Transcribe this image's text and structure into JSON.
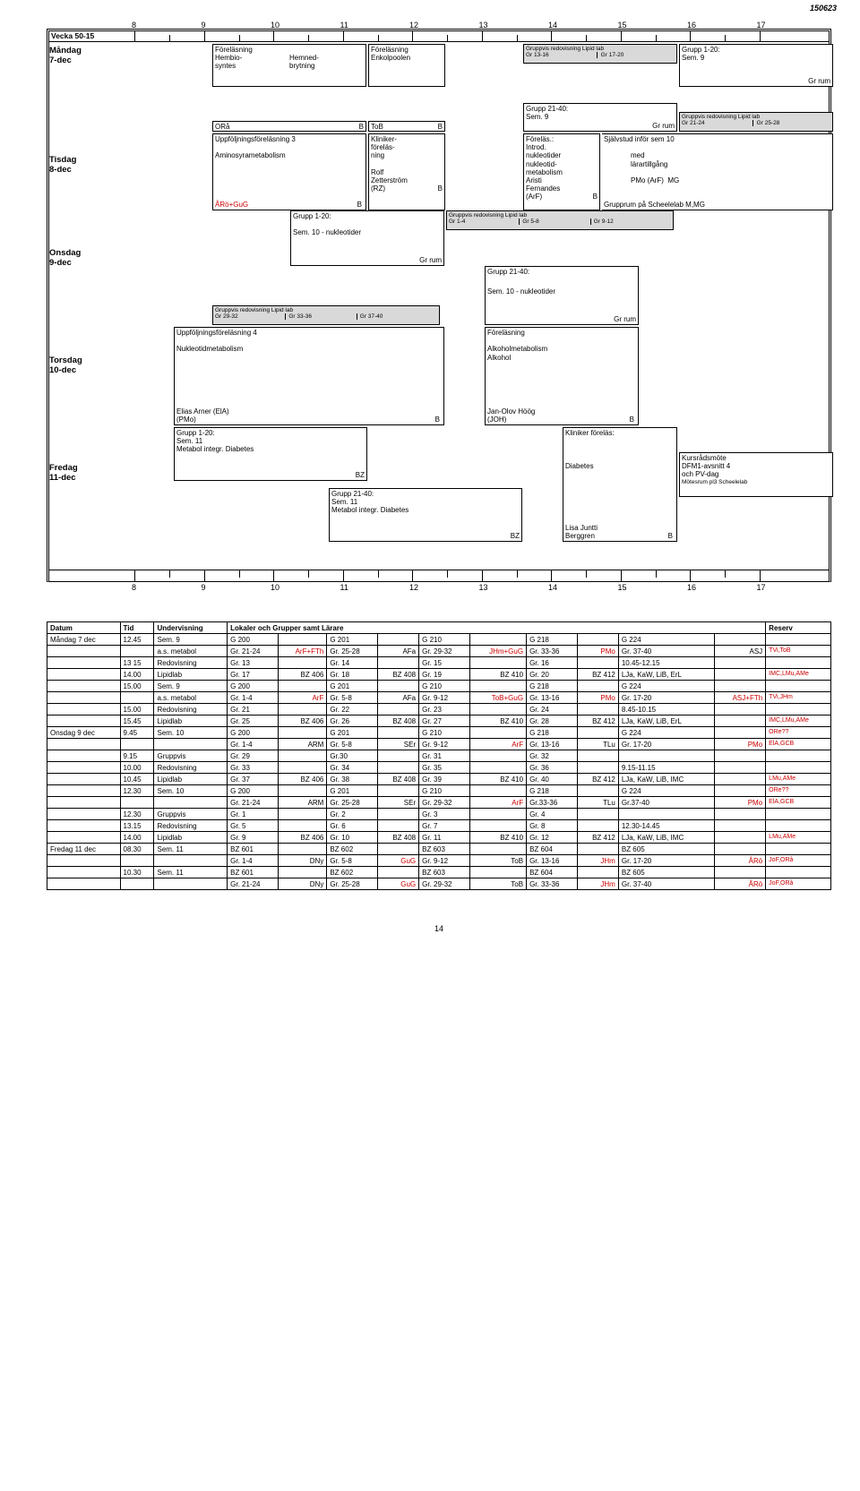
{
  "top_date": "150623",
  "week_label": "Vecka 50-15",
  "hours": [
    "8",
    "9",
    "10",
    "11",
    "12",
    "13",
    "14",
    "15",
    "16",
    "17"
  ],
  "days": [
    {
      "name": "Måndag",
      "date": "7-dec"
    },
    {
      "name": "Tisdag",
      "date": "8-dec"
    },
    {
      "name": "Onsdag",
      "date": "9-dec"
    },
    {
      "name": "Torsdag",
      "date": "10-dec"
    },
    {
      "name": "Fredag",
      "date": "11-dec"
    }
  ],
  "mon": {
    "e1_title": "Föreläsning",
    "e1_l1": "Hembio-",
    "e1_l2": "syntes",
    "e1_r1": "Hemned-",
    "e1_r2": "brytning",
    "e2_title": "Föreläsning",
    "e2_l1": "Enkolpoolen",
    "e3_sm": "Gruppvis redovisning Lipid lab",
    "e3_a": "Gr 13-16",
    "e3_b": "Gr 17-20",
    "e4_t": "Grupp 1-20:",
    "e4_l": "Sem. 9",
    "e4_br": "Gr rum"
  },
  "tue": {
    "ora": "ORå",
    "orb": "B",
    "tob": "ToB",
    "tobB": "B",
    "g21": "Grupp 21-40:",
    "s9": "Sem. 9",
    "grrum": "Gr rum",
    "gvll": "Gruppvis redovisning Lipid lab",
    "g21_24": "Gr 21-24",
    "g25_28": "Gr 25-28",
    "uf3": "Uppföljningsföreläsning 3",
    "amin": "Aminosyrametabolism",
    "aro": "ÅRö+GuG",
    "aroB": "B",
    "klin": "Kliniker-",
    "forelas": "föreläs-",
    "ning": "ning",
    "rolf": "Rolf",
    "zett": "Zetterström",
    "rz": "(RZ)",
    "rzB": "B",
    "forel": "Föreläs.:",
    "introd": "Introd.",
    "nukleo": "nukleotider",
    "nukleotid": "nukleotid-",
    "metab": "metabolism",
    "aristi": "Aristi",
    "fern": "Fernandes",
    "arf": "(ArF)",
    "arfB": "B",
    "sjalv": "Självstud inför sem 10",
    "med": "med",
    "larar": "lärartillgång",
    "pmo": "PMo (ArF)",
    "mg": "MG",
    "grupprum": "Grupprum på Scheelelab M,MG"
  },
  "wed": {
    "g120": "Grupp 1-20:",
    "s10": "Sem. 10 - nukleotider",
    "grrum": "Gr rum",
    "gvll": "Gruppvis redovisning Lipid lab",
    "g14": "Gr 1-4",
    "g58": "Gr 5-8",
    "g912": "Gr 9-12",
    "g2140": "Grupp 21-40:",
    "bot_gvll": "Gruppvis redovisning Lipid lab",
    "g2932": "Gr 29-32",
    "g3336": "Gr 33-36",
    "g3740": "Gr 37-40",
    "s10b": "Sem. 10 - nukleotider",
    "grrum2": "Gr rum"
  },
  "thu": {
    "uf4": "Uppföljningsföreläsning 4",
    "nm": "Nukleotidmetabolism",
    "f": "Föreläsning",
    "alk": "Alkoholmetabolism",
    "alkohol": "Alkohol",
    "ea": "Elias Arner (ElA)",
    "pmo": "(PMo)",
    "B": "B",
    "joh_n": "Jan-Olov Höög",
    "joh": "(JOH)"
  },
  "fri": {
    "g120": "Grupp 1-20:",
    "s11": "Sem. 11",
    "mid": "Metabol integr. Diabetes",
    "bz": "BZ",
    "g2140": "Grupp 21-40:",
    "s11b": "Sem. 11",
    "mid2": "Metabol integr. Diabetes",
    "bz2": "BZ",
    "kf": "Kliniker föreläs:",
    "diab": "Diabetes",
    "lisa": "Lisa Juntti",
    "berg": "Berggren",
    "bB": "B",
    "kurs": "Kursrådsmöte",
    "d4": "DFM1-avsnitt 4",
    "pv": "och PV-dag",
    "mote": "Mötesrum pl3 Scheelelab"
  },
  "table": {
    "head": [
      "Datum",
      "Tid",
      "Undervisning",
      "Lokaler och Grupper samt Lärare",
      "Reserv"
    ],
    "rows": [
      [
        "Måndag 7 dec",
        "12.45",
        "Sem. 9",
        "G 200",
        "",
        "G 201",
        "",
        "G 210",
        "",
        "G 218",
        "",
        "G 224",
        "",
        ""
      ],
      [
        "",
        "",
        "a.s. metabol",
        "Gr. 21-24",
        "ArF+FTh",
        "Gr. 25-28",
        "AFa",
        "Gr. 29-32",
        "JHm+GuG",
        "Gr. 33-36",
        "PMo",
        "Gr. 37-40",
        "ASJ",
        "TVi,ToB"
      ],
      [
        "",
        "13 15",
        "Redovisning",
        "Gr. 13",
        "",
        "Gr. 14",
        "",
        "Gr. 15",
        "",
        "Gr. 16",
        "",
        "10.45-12.15",
        "",
        ""
      ],
      [
        "",
        "14.00",
        "Lipidlab",
        "Gr. 17",
        "BZ 406",
        "Gr. 18",
        "BZ 408",
        "Gr. 19",
        "BZ 410",
        "Gr. 20",
        "BZ 412",
        "LJa, KaW, LiB, ErL",
        "",
        "IMC,LMu,AMe"
      ],
      [
        "",
        "15.00",
        "Sem. 9",
        "G 200",
        "",
        "G 201",
        "",
        "G 210",
        "",
        "G 218",
        "",
        "G 224",
        "",
        ""
      ],
      [
        "",
        "",
        "a.s. metabol",
        "Gr. 1-4",
        "ArF",
        "Gr. 5-8",
        "AFa",
        "Gr. 9-12",
        "ToB+GuG",
        "Gr. 13-16",
        "PMo",
        "Gr. 17-20",
        "ASJ+FTh",
        "TVi,JHm"
      ],
      [
        "",
        "15.00",
        "Redovisning",
        "Gr. 21",
        "",
        "Gr. 22",
        "",
        "Gr. 23",
        "",
        "Gr. 24",
        "",
        "8.45-10.15",
        "",
        ""
      ],
      [
        "",
        "15.45",
        "Lipidlab",
        "Gr. 25",
        "BZ 406",
        "Gr. 26",
        "BZ 408",
        "Gr. 27",
        "BZ 410",
        "Gr. 28",
        "BZ 412",
        "LJa, KaW, LiB, ErL",
        "",
        "IMC,LMu,AMe"
      ],
      [
        "Onsdag 9 dec",
        "9.45",
        "Sem. 10",
        "G 200",
        "",
        "G 201",
        "",
        "G 210",
        "",
        "G 218",
        "",
        "G 224",
        "",
        "ORe??"
      ],
      [
        "",
        "",
        "",
        "Gr. 1-4",
        "ARM",
        "Gr. 5-8",
        "SEr",
        "Gr. 9-12",
        "ArF",
        "Gr. 13-16",
        "TLu",
        "Gr. 17-20",
        "PMo",
        "ElA,GCB"
      ],
      [
        "",
        "9.15",
        "Gruppvis",
        "Gr. 29",
        "",
        "Gr.30",
        "",
        "Gr. 31",
        "",
        "Gr. 32",
        "",
        "",
        "",
        ""
      ],
      [
        "",
        "10.00",
        "Redovisning",
        "Gr. 33",
        "",
        "Gr. 34",
        "",
        "Gr. 35",
        "",
        "Gr. 36",
        "",
        "9.15-11.15",
        "",
        ""
      ],
      [
        "",
        "10.45",
        "Lipidlab",
        "Gr. 37",
        "BZ 406",
        "Gr. 38",
        "BZ 408",
        "Gr. 39",
        "BZ 410",
        "Gr. 40",
        "BZ 412",
        "LJa, KaW, LiB, IMC",
        "",
        "LMu,AMe"
      ],
      [
        "",
        "12.30",
        "Sem. 10",
        "G 200",
        "",
        "G 201",
        "",
        "G 210",
        "",
        "G 218",
        "",
        "G 224",
        "",
        "ORe??"
      ],
      [
        "",
        "",
        "",
        "Gr. 21-24",
        "ARM",
        "Gr. 25-28",
        "SEr",
        "Gr. 29-32",
        "ArF",
        "Gr.33-36",
        "TLu",
        "Gr.37-40",
        "PMo",
        "ElA,GCB"
      ],
      [
        "",
        "12.30",
        "Gruppvis",
        "Gr. 1",
        "",
        "Gr. 2",
        "",
        "Gr. 3",
        "",
        "Gr. 4",
        "",
        "",
        "",
        ""
      ],
      [
        "",
        "13.15",
        "Redovisning",
        "Gr. 5",
        "",
        "Gr. 6",
        "",
        "Gr. 7",
        "",
        "Gr. 8",
        "",
        "12.30-14.45",
        "",
        ""
      ],
      [
        "",
        "14.00",
        "Lipidlab",
        "Gr. 9",
        "BZ 406",
        "Gr. 10",
        "BZ 408",
        "Gr. 11",
        "BZ 410",
        "Gr. 12",
        "BZ 412",
        "LJa, KaW, LiB, IMC",
        "",
        "LMu,AMe"
      ],
      [
        "Fredag 11 dec",
        "08.30",
        "Sem. 11",
        "BZ 601",
        "",
        "BZ 602",
        "",
        "BZ 603",
        "",
        "BZ 604",
        "",
        "BZ 605",
        "",
        ""
      ],
      [
        "",
        "",
        "",
        "Gr. 1-4",
        "DNy",
        "Gr. 5-8",
        "GuG",
        "Gr. 9-12",
        "ToB",
        "Gr. 13-16",
        "JHm",
        "Gr. 17-20",
        "ÅRö",
        "JoF,ORå"
      ],
      [
        "",
        "10.30",
        "Sem. 11",
        "BZ 601",
        "",
        "BZ 602",
        "",
        "BZ 603",
        "",
        "BZ 604",
        "",
        "BZ 605",
        "",
        ""
      ],
      [
        "",
        "",
        "",
        "Gr. 21-24",
        "DNy",
        "Gr. 25-28",
        "GuG",
        "Gr. 29-32",
        "ToB",
        "Gr. 33-36",
        "JHm",
        "Gr. 37-40",
        "ÅRö",
        "JoF,ORå"
      ]
    ],
    "red": {
      "ArF+FTh": 1,
      "JHm+GuG": 1,
      "TVi,ToB": 1,
      "IMC,LMu,AMe": 1,
      "ToB+GuG": 1,
      "ASJ+FTh": 1,
      "TVi,JHm": 1,
      "ArF": 1,
      "PMo": 1,
      "ElA,GCB": 1,
      "LMu,AMe": 1,
      "GuG": 1,
      "JHm": 1,
      "ÅRö": 1,
      "JoF,ORå": 1,
      "ORe??": 1
    }
  },
  "pagenum": "14"
}
